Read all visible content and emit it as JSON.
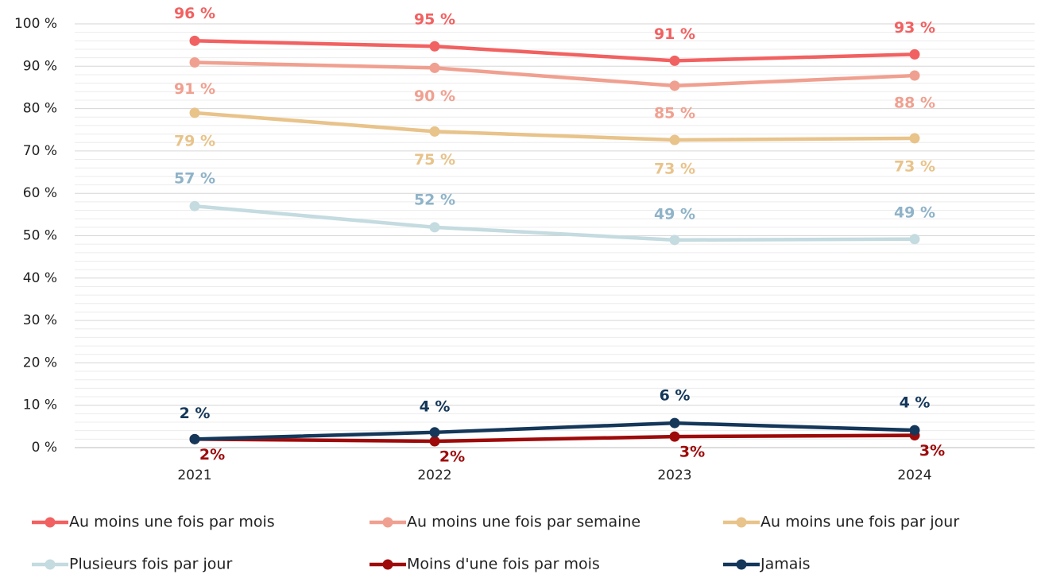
{
  "chart_data": {
    "type": "line",
    "categories": [
      "2021",
      "2022",
      "2023",
      "2024"
    ],
    "ylim": [
      0,
      100
    ],
    "yticks": [
      {
        "value": 0,
        "label": "0 %"
      },
      {
        "value": 10,
        "label": "10 %"
      },
      {
        "value": 20,
        "label": "20 %"
      },
      {
        "value": 30,
        "label": "30 %"
      },
      {
        "value": 40,
        "label": "40 %"
      },
      {
        "value": 50,
        "label": "50 %"
      },
      {
        "value": 60,
        "label": "60 %"
      },
      {
        "value": 70,
        "label": "70 %"
      },
      {
        "value": 80,
        "label": "80 %"
      },
      {
        "value": 90,
        "label": "90 %"
      },
      {
        "value": 100,
        "label": "100 %"
      }
    ],
    "yminorticks": [
      2,
      4,
      6,
      8,
      12,
      14,
      16,
      18,
      22,
      24,
      26,
      28,
      32,
      34,
      36,
      38,
      42,
      44,
      46,
      48,
      52,
      54,
      56,
      58,
      62,
      64,
      66,
      68,
      72,
      74,
      76,
      78,
      82,
      84,
      86,
      88,
      92,
      94,
      96,
      98
    ],
    "grid": true,
    "legend": "bottom",
    "series": [
      {
        "name": "Au moins une fois par mois",
        "color": "#f26161",
        "label_color": "#f26161",
        "values": [
          96,
          94.7,
          91.3,
          92.8
        ],
        "value_labels": [
          "96 %",
          "95 %",
          "91 %",
          "93 %"
        ]
      },
      {
        "name": "Au moins une fois par semaine",
        "color": "#f0a090",
        "label_color": "#f0a090",
        "values": [
          90.9,
          89.6,
          85.4,
          87.8
        ],
        "value_labels": [
          "91 %",
          "90 %",
          "85 %",
          "88 %"
        ]
      },
      {
        "name": "Au moins une fois par jour",
        "color": "#e8c38a",
        "label_color": "#e8c38a",
        "values": [
          79,
          74.6,
          72.6,
          73
        ],
        "value_labels": [
          "79 %",
          "75 %",
          "73 %",
          "73 %"
        ]
      },
      {
        "name": "Plusieurs fois par jour",
        "color": "#c4dbe0",
        "label_color": "#8fb3c8",
        "values": [
          57,
          52,
          49,
          49.2
        ],
        "value_labels": [
          "57 %",
          "52 %",
          "49 %",
          "49 %"
        ]
      },
      {
        "name": "Moins d'une fois par mois",
        "color": "#9e0a0a",
        "label_color": "#9e0a0a",
        "values": [
          2,
          1.5,
          2.6,
          2.9
        ],
        "value_labels": [
          "2%",
          "2%",
          "3%",
          "3%"
        ]
      },
      {
        "name": "Jamais",
        "color": "#14375a",
        "label_color": "#14375a",
        "values": [
          2,
          3.6,
          5.8,
          4.1
        ],
        "value_labels": [
          "2 %",
          "4 %",
          "6 %",
          "4 %"
        ]
      }
    ]
  }
}
